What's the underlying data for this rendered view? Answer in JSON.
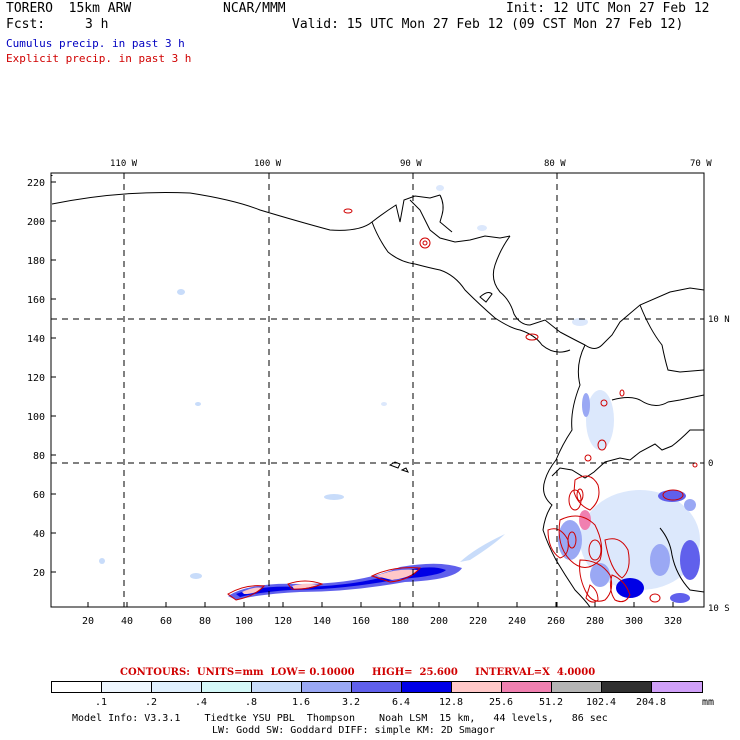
{
  "header": {
    "model": "TORERO  15km ARW",
    "org": "NCAR/MMM",
    "init": "Init: 12 UTC Mon 27 Feb 12",
    "fcst_label": "Fcst:",
    "fcst_value": "3 h",
    "valid": "Valid: 15 UTC Mon 27 Feb 12 (09 CST Mon 27 Feb 12)",
    "cumulus": "Cumulus precip. in past 3 h",
    "explicit": "Explicit precip. in past 3 h"
  },
  "colors": {
    "cumulus": "#0000c0",
    "explicit": "#d00000",
    "contour": "#d00000"
  },
  "top_ticks": [
    "110 W",
    "100 W",
    "90 W",
    "80 W",
    "70 W"
  ],
  "right_ticks": [
    "10 N",
    "0",
    "10 S"
  ],
  "y_ticks": [
    "220",
    "200",
    "180",
    "160",
    "140",
    "120",
    "100",
    "80",
    "60",
    "40",
    "20"
  ],
  "x_ticks": [
    "20",
    "40",
    "60",
    "80",
    "100",
    "120",
    "140",
    "160",
    "180",
    "200",
    "220",
    "240",
    "260",
    "280",
    "300",
    "320"
  ],
  "contours_line": "CONTOURS:  UNITS=mm  LOW= 0.10000     HIGH=  25.600     INTERVAL=X  4.0000",
  "legend": {
    "colors": [
      "#ffffff",
      "#eef6fe",
      "#e0f0fe",
      "#d4f8f8",
      "#c8dcfa",
      "#9aa8f4",
      "#6060ec",
      "#0000e6",
      "#ffc8c8",
      "#f080b0",
      "#b4b4b4",
      "#303030",
      "#d0a0f8"
    ],
    "labels": [
      ".1",
      ".2",
      ".4",
      ".8",
      "1.6",
      "3.2",
      "6.4",
      "12.8",
      "25.6",
      "51.2",
      "102.4",
      "204.8"
    ],
    "unit": "mm"
  },
  "footer": {
    "line1": "Model Info: V3.3.1    Tiedtke YSU PBL  Thompson    Noah LSM  15 km,   44 levels,   86 sec",
    "line2": "LW: Godd SW: Goddard DIFF: simple KM: 2D Smagor"
  }
}
